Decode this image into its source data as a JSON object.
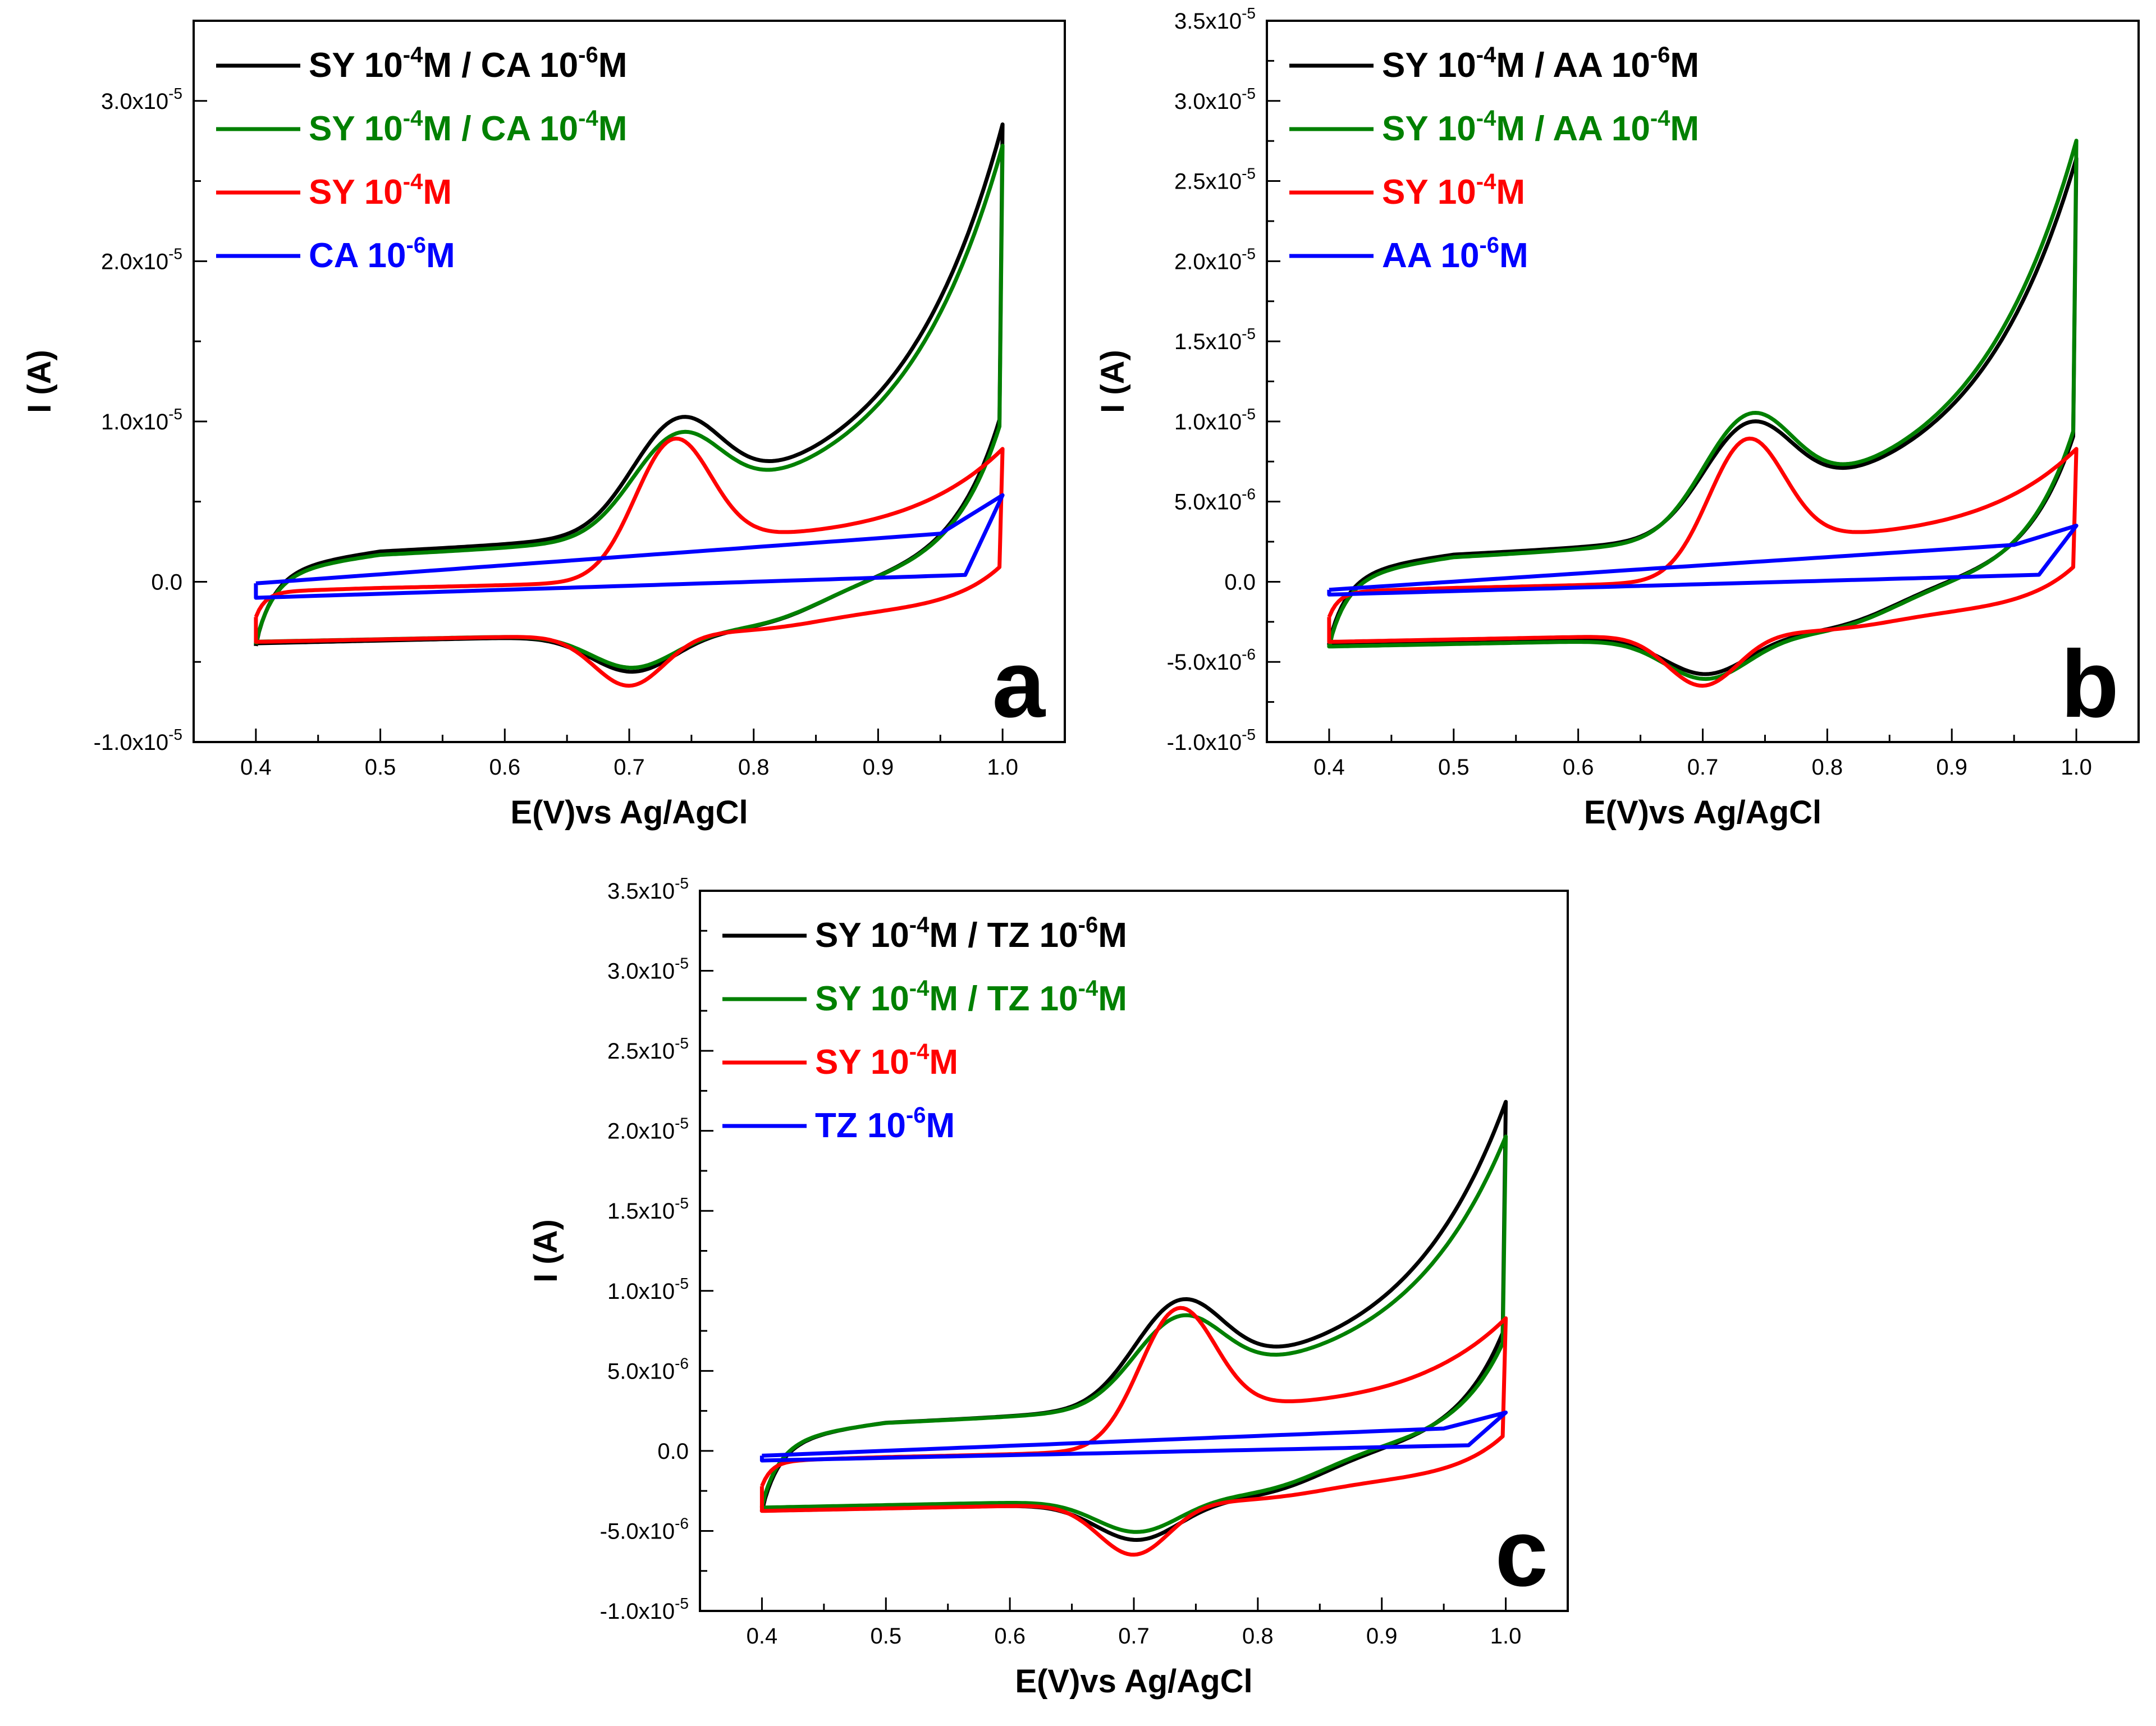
{
  "figure": {
    "panel_order": [
      "a",
      "b",
      "c"
    ]
  },
  "chart_data": [
    {
      "panel": "a",
      "type": "line",
      "xlabel": "E(V)vs Ag/AgCl",
      "ylabel": "I (A)",
      "xlim": [
        0.35,
        1.05
      ],
      "ylim": [
        -1e-05,
        3.5e-05
      ],
      "xticks": [
        0.4,
        0.5,
        0.6,
        0.7,
        0.8,
        0.9,
        1.0
      ],
      "xtick_labels": [
        "0.4",
        "0.5",
        "0.6",
        "0.7",
        "0.8",
        "0.9",
        "1.0"
      ],
      "yticks": [
        -1e-05,
        0,
        1e-05,
        2e-05,
        3e-05
      ],
      "ytick_labels": [
        {
          "mantissa": "-1.0x10",
          "exp": "-5"
        },
        {
          "mantissa": "0.0",
          "exp": ""
        },
        {
          "mantissa": "1.0x10",
          "exp": "-5"
        },
        {
          "mantissa": "2.0x10",
          "exp": "-5"
        },
        {
          "mantissa": "3.0x10",
          "exp": "-5"
        }
      ],
      "legend_location": "top-left",
      "letter": "a",
      "series": [
        {
          "name": "SY 10-4M / CA 10-6M",
          "legend_parts": [
            {
              "text": "SY 10",
              "sup": false
            },
            {
              "text": "-4",
              "sup": true
            },
            {
              "text": "M / CA 10",
              "sup": false
            },
            {
              "text": "-6",
              "sup": true
            },
            {
              "text": "M",
              "sup": false
            }
          ],
          "color": "#000000",
          "params": {
            "a": 2.8e-06,
            "b": 1e-06,
            "ipa": 5.8e-06,
            "ipc": 2.3e-06,
            "ja": 1.6e-06,
            "jc": 3e-07,
            "A": 2.4e-05,
            "k": 12,
            "base": -2.5e-06,
            "slope": 1.2e-06,
            "pa": 0.735,
            "pc": 0.703,
            "wa": 0.035,
            "wc": 0.033,
            "kc": 70,
            "cstep": 2.8e-06,
            "jump": 0.015,
            "cathodicPeakStart": -4e-06
          }
        },
        {
          "name": "SY 10-4M / CA 10-4M",
          "legend_parts": [
            {
              "text": "SY 10",
              "sup": false
            },
            {
              "text": "-4",
              "sup": true
            },
            {
              "text": "M / CA 10",
              "sup": false
            },
            {
              "text": "-4",
              "sup": true
            },
            {
              "text": "M",
              "sup": false
            }
          ],
          "color": "#008000",
          "params": {
            "a": 2.6e-06,
            "b": 1e-06,
            "ipa": 5.2e-06,
            "ipc": 2.1e-06,
            "ja": 1.6e-06,
            "jc": 2e-07,
            "A": 2.3e-05,
            "k": 12,
            "base": -2.4e-06,
            "slope": 1.2e-06,
            "pa": 0.735,
            "pc": 0.703,
            "wa": 0.035,
            "wc": 0.033,
            "kc": 70,
            "cstep": 2.8e-06,
            "jump": 0.015,
            "cathodicPeakStart": -3.9e-06
          }
        },
        {
          "name": "SY 10-4M",
          "legend_parts": [
            {
              "text": "SY 10",
              "sup": false
            },
            {
              "text": "-4",
              "sup": true
            },
            {
              "text": "M",
              "sup": false
            }
          ],
          "color": "#ff0000",
          "params": {
            "a": 3e-07,
            "b": 5e-07,
            "ipa": 7.7e-06,
            "ipc": 3.2e-06,
            "ja": 6e-07,
            "jc": 2e-07,
            "A": 6.5e-06,
            "k": 12,
            "base": -2.5e-06,
            "slope": 1.2e-06,
            "pa": 0.733,
            "pc": 0.7,
            "wa": 0.03,
            "wc": 0.028,
            "kc": 70,
            "cstep": 1e-06,
            "jump": 0.008,
            "cathodicPeakStart": -2.2e-06
          }
        },
        {
          "name": "CA 10-6M",
          "legend_parts": [
            {
              "text": "CA 10",
              "sup": false
            },
            {
              "text": "-6",
              "sup": true
            },
            {
              "text": "M",
              "sup": false
            }
          ],
          "color": "#0000ff",
          "linear": {
            "start": -1e-06,
            "end_upper": 5.4e-06,
            "upper_at_0_4": -1e-07,
            "upper_at_0_95": 3e-06,
            "lower_at_0_4": -1e-06,
            "lower_at_1_0": 5e-07
          }
        }
      ]
    },
    {
      "panel": "b",
      "type": "line",
      "xlabel": "E(V)vs Ag/AgCl",
      "ylabel": "I (A)",
      "xlim": [
        0.35,
        1.05
      ],
      "ylim": [
        -1e-05,
        3.5e-05
      ],
      "xticks": [
        0.4,
        0.5,
        0.6,
        0.7,
        0.8,
        0.9,
        1.0
      ],
      "xtick_labels": [
        "0.4",
        "0.5",
        "0.6",
        "0.7",
        "0.8",
        "0.9",
        "1.0"
      ],
      "yticks": [
        -1e-05,
        -5e-06,
        0,
        5e-06,
        1e-05,
        1.5e-05,
        2e-05,
        2.5e-05,
        3e-05,
        3.5e-05
      ],
      "ytick_labels": [
        {
          "mantissa": "-1.0x10",
          "exp": "-5"
        },
        {
          "mantissa": "-5.0x10",
          "exp": "-6"
        },
        {
          "mantissa": "0.0",
          "exp": ""
        },
        {
          "mantissa": "5.0x10",
          "exp": "-6"
        },
        {
          "mantissa": "1.0x10",
          "exp": "-5"
        },
        {
          "mantissa": "1.5x10",
          "exp": "-5"
        },
        {
          "mantissa": "2.0x10",
          "exp": "-5"
        },
        {
          "mantissa": "2.5x10",
          "exp": "-5"
        },
        {
          "mantissa": "3.0x10",
          "exp": "-5"
        },
        {
          "mantissa": "3.5x10",
          "exp": "-5"
        }
      ],
      "legend_location": "top-left",
      "letter": "b",
      "series": [
        {
          "name": "SY 10-4M / AA 10-6M",
          "legend_parts": [
            {
              "text": "SY 10",
              "sup": false
            },
            {
              "text": "-4",
              "sup": true
            },
            {
              "text": "M / AA 10",
              "sup": false
            },
            {
              "text": "-6",
              "sup": true
            },
            {
              "text": "M",
              "sup": false
            }
          ],
          "color": "#000000",
          "params": {
            "a": 2.6e-06,
            "b": 1.2e-06,
            "ipa": 5.8e-06,
            "ipc": 2.3e-06,
            "ja": 1.4e-06,
            "jc": 2e-07,
            "A": 2.2e-05,
            "k": 12,
            "base": -2.6e-06,
            "slope": 1.2e-06,
            "pa": 0.733,
            "pc": 0.703,
            "wa": 0.035,
            "wc": 0.033,
            "kc": 70,
            "cstep": 2.8e-06,
            "jump": 0.015,
            "cathodicPeakStart": -3.9e-06
          }
        },
        {
          "name": "SY 10-4M / AA 10-4M",
          "legend_parts": [
            {
              "text": "SY 10",
              "sup": false
            },
            {
              "text": "-4",
              "sup": true
            },
            {
              "text": "M / AA 10",
              "sup": false
            },
            {
              "text": "-4",
              "sup": true
            },
            {
              "text": "M",
              "sup": false
            }
          ],
          "color": "#008000",
          "params": {
            "a": 2.6e-06,
            "b": 1.3e-06,
            "ipa": 6.3e-06,
            "ipc": 2.5e-06,
            "ja": 1.6e-06,
            "jc": 2e-07,
            "A": 2.3e-05,
            "k": 12,
            "base": -2.7e-06,
            "slope": 1.2e-06,
            "pa": 0.733,
            "pc": 0.703,
            "wa": 0.035,
            "wc": 0.033,
            "kc": 70,
            "cstep": 2.8e-06,
            "jump": 0.015,
            "cathodicPeakStart": -4.1e-06
          }
        },
        {
          "name": "SY 10-4M",
          "legend_parts": [
            {
              "text": "SY 10",
              "sup": false
            },
            {
              "text": "-4",
              "sup": true
            },
            {
              "text": "M",
              "sup": false
            }
          ],
          "color": "#ff0000",
          "params": {
            "a": 3e-07,
            "b": 5e-07,
            "ipa": 7.7e-06,
            "ipc": 3.2e-06,
            "ja": 6e-07,
            "jc": 2e-07,
            "A": 6.5e-06,
            "k": 12,
            "base": -2.5e-06,
            "slope": 1.2e-06,
            "pa": 0.733,
            "pc": 0.7,
            "wa": 0.03,
            "wc": 0.028,
            "kc": 70,
            "cstep": 1e-06,
            "jump": 0.008,
            "cathodicPeakStart": -2.2e-06
          }
        },
        {
          "name": "AA 10-6M",
          "legend_parts": [
            {
              "text": "AA 10",
              "sup": false
            },
            {
              "text": "-6",
              "sup": true
            },
            {
              "text": "M",
              "sup": false
            }
          ],
          "color": "#0000ff",
          "linear": {
            "start": -8e-07,
            "end_upper": 3.5e-06,
            "upper_at_0_4": -5e-07,
            "upper_at_0_95": 2.3e-06,
            "lower_at_0_4": -8e-07,
            "lower_at_1_0": 5e-07
          }
        }
      ]
    },
    {
      "panel": "c",
      "type": "line",
      "xlabel": "E(V)vs Ag/AgCl",
      "ylabel": "I (A)",
      "xlim": [
        0.35,
        1.05
      ],
      "ylim": [
        -1e-05,
        3.5e-05
      ],
      "xticks": [
        0.4,
        0.5,
        0.6,
        0.7,
        0.8,
        0.9,
        1.0
      ],
      "xtick_labels": [
        "0.4",
        "0.5",
        "0.6",
        "0.7",
        "0.8",
        "0.9",
        "1.0"
      ],
      "yticks": [
        -1e-05,
        -5e-06,
        0,
        5e-06,
        1e-05,
        1.5e-05,
        2e-05,
        2.5e-05,
        3e-05,
        3.5e-05
      ],
      "ytick_labels": [
        {
          "mantissa": "-1.0x10",
          "exp": "-5"
        },
        {
          "mantissa": "-5.0x10",
          "exp": "-6"
        },
        {
          "mantissa": "0.0",
          "exp": ""
        },
        {
          "mantissa": "5.0x10",
          "exp": "-6"
        },
        {
          "mantissa": "1.0x10",
          "exp": "-5"
        },
        {
          "mantissa": "1.5x10",
          "exp": "-5"
        },
        {
          "mantissa": "2.0x10",
          "exp": "-5"
        },
        {
          "mantissa": "2.5x10",
          "exp": "-5"
        },
        {
          "mantissa": "3.0x10",
          "exp": "-5"
        },
        {
          "mantissa": "3.5x10",
          "exp": "-5"
        }
      ],
      "legend_location": "top-left",
      "letter": "c",
      "series": [
        {
          "name": "SY 10-4M / TZ 10-6M",
          "legend_parts": [
            {
              "text": "SY 10",
              "sup": false
            },
            {
              "text": "-4",
              "sup": true
            },
            {
              "text": "M / TZ 10",
              "sup": false
            },
            {
              "text": "-6",
              "sup": true
            },
            {
              "text": "M",
              "sup": false
            }
          ],
          "color": "#000000",
          "params": {
            "a": 2.6e-06,
            "b": 1e-06,
            "ipa": 5.5e-06,
            "ipc": 2.3e-06,
            "ja": 1.5e-06,
            "jc": 2e-07,
            "A": 1.75e-05,
            "k": 12,
            "base": -2.4e-06,
            "slope": 1.2e-06,
            "pa": 0.733,
            "pc": 0.703,
            "wa": 0.035,
            "wc": 0.033,
            "kc": 70,
            "cstep": 2.8e-06,
            "jump": 0.015,
            "cathodicPeakStart": -3.8e-06
          }
        },
        {
          "name": "SY 10-4M / TZ 10-4M",
          "legend_parts": [
            {
              "text": "SY 10",
              "sup": false
            },
            {
              "text": "-4",
              "sup": true
            },
            {
              "text": "M / TZ 10",
              "sup": false
            },
            {
              "text": "-4",
              "sup": true
            },
            {
              "text": "M",
              "sup": false
            }
          ],
          "color": "#008000",
          "params": {
            "a": 2.4e-06,
            "b": 1e-06,
            "ipa": 4.7e-06,
            "ipc": 2e-06,
            "ja": 1.5e-06,
            "jc": 2e-07,
            "A": 1.55e-05,
            "k": 12,
            "base": -2.2e-06,
            "slope": 1.2e-06,
            "pa": 0.733,
            "pc": 0.703,
            "wa": 0.035,
            "wc": 0.033,
            "kc": 70,
            "cstep": 2.8e-06,
            "jump": 0.015,
            "cathodicPeakStart": -3.5e-06
          }
        },
        {
          "name": "SY 10-4M",
          "legend_parts": [
            {
              "text": "SY 10",
              "sup": false
            },
            {
              "text": "-4",
              "sup": true
            },
            {
              "text": "M",
              "sup": false
            }
          ],
          "color": "#ff0000",
          "params": {
            "a": 3e-07,
            "b": 5e-07,
            "ipa": 7.7e-06,
            "ipc": 3.2e-06,
            "ja": 6e-07,
            "jc": 2e-07,
            "A": 6.5e-06,
            "k": 12,
            "base": -2.5e-06,
            "slope": 1.2e-06,
            "pa": 0.733,
            "pc": 0.7,
            "wa": 0.03,
            "wc": 0.028,
            "kc": 70,
            "cstep": 1e-06,
            "jump": 0.008,
            "cathodicPeakStart": -2.2e-06
          }
        },
        {
          "name": "TZ 10-6M",
          "legend_parts": [
            {
              "text": "TZ 10",
              "sup": false
            },
            {
              "text": "-6",
              "sup": true
            },
            {
              "text": "M",
              "sup": false
            }
          ],
          "color": "#0000ff",
          "linear": {
            "start": -6e-07,
            "end_upper": 2.4e-06,
            "upper_at_0_4": -3e-07,
            "upper_at_0_95": 1.4e-06,
            "lower_at_0_4": -6e-07,
            "lower_at_1_0": 4e-07
          }
        }
      ]
    }
  ]
}
